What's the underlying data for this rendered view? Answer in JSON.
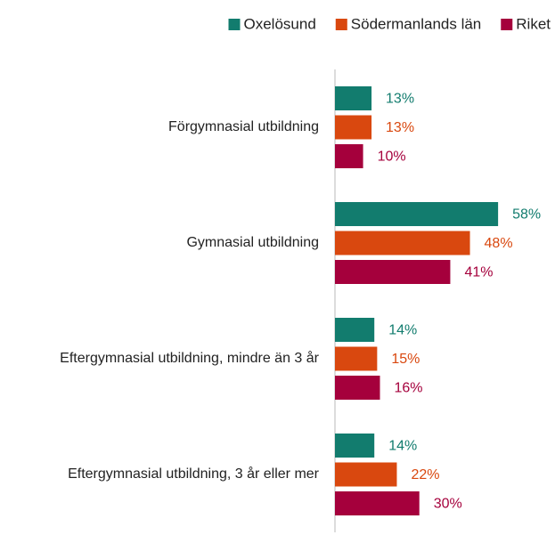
{
  "chart_data": {
    "type": "bar",
    "orientation": "horizontal",
    "categories": [
      "Förgymnasial utbildning",
      "Gymnasial utbildning",
      "Eftergymnasial utbildning, mindre än 3 år",
      "Eftergymnasial utbildning, 3 år eller mer"
    ],
    "series": [
      {
        "name": "Oxelösund",
        "color": "#127c6e",
        "values": [
          13,
          58,
          14,
          14
        ],
        "value_labels": [
          "13%",
          "58%",
          "14%",
          "14%"
        ]
      },
      {
        "name": "Södermanlands län",
        "color": "#d9480f",
        "values": [
          13,
          48,
          15,
          22
        ],
        "value_labels": [
          "13%",
          "48%",
          "15%",
          "22%"
        ]
      },
      {
        "name": "Riket",
        "color": "#a5003c",
        "values": [
          10,
          41,
          16,
          30
        ],
        "value_labels": [
          "10%",
          "41%",
          "16%",
          "30%"
        ]
      }
    ],
    "xlim": [
      0,
      70
    ],
    "legend": "top"
  }
}
